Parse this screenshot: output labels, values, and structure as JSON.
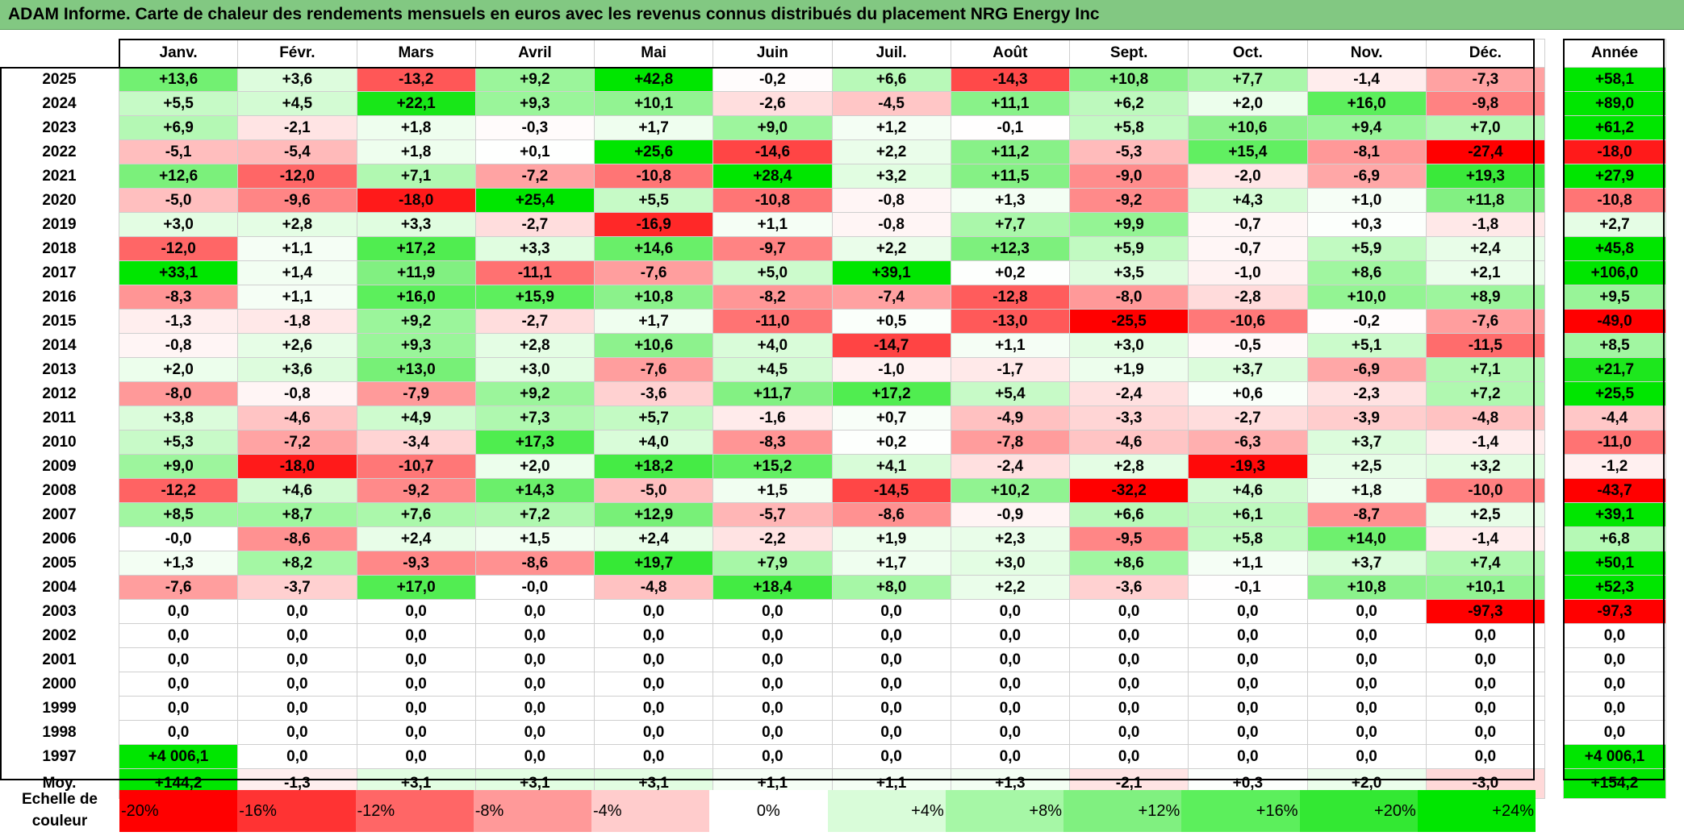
{
  "title": "ADAM Informe. Carte de chaleur des rendements mensuels en euros avec les revenus connus distribués du placement NRG Energy Inc",
  "chart_data": {
    "type": "heatmap",
    "title": "ADAM Informe. Carte de chaleur des rendements mensuels en euros avec les revenus connus distribués du placement NRG Energy Inc",
    "columns": [
      "Janv.",
      "Févr.",
      "Mars",
      "Avril",
      "Mai",
      "Juin",
      "Juil.",
      "Août",
      "Sept.",
      "Oct.",
      "Nov.",
      "Déc."
    ],
    "year_column_label": "Année",
    "rows": [
      {
        "year": "2025",
        "values": [
          "+13,6",
          "+3,6",
          "-13,2",
          "+9,2",
          "+42,8",
          "-0,2",
          "+6,6",
          "-14,3",
          "+10,8",
          "+7,7",
          "-1,4",
          "-7,3"
        ],
        "annual": "+58,1"
      },
      {
        "year": "2024",
        "values": [
          "+5,5",
          "+4,5",
          "+22,1",
          "+9,3",
          "+10,1",
          "-2,6",
          "-4,5",
          "+11,1",
          "+6,2",
          "+2,0",
          "+16,0",
          "-9,8"
        ],
        "annual": "+89,0"
      },
      {
        "year": "2023",
        "values": [
          "+6,9",
          "-2,1",
          "+1,8",
          "-0,3",
          "+1,7",
          "+9,0",
          "+1,2",
          "-0,1",
          "+5,8",
          "+10,6",
          "+9,4",
          "+7,0"
        ],
        "annual": "+61,2"
      },
      {
        "year": "2022",
        "values": [
          "-5,1",
          "-5,4",
          "+1,8",
          "+0,1",
          "+25,6",
          "-14,6",
          "+2,2",
          "+11,2",
          "-5,3",
          "+15,4",
          "-8,1",
          "-27,4"
        ],
        "annual": "-18,0"
      },
      {
        "year": "2021",
        "values": [
          "+12,6",
          "-12,0",
          "+7,1",
          "-7,2",
          "-10,8",
          "+28,4",
          "+3,2",
          "+11,5",
          "-9,0",
          "-2,0",
          "-6,9",
          "+19,3"
        ],
        "annual": "+27,9"
      },
      {
        "year": "2020",
        "values": [
          "-5,0",
          "-9,6",
          "-18,0",
          "+25,4",
          "+5,5",
          "-10,8",
          "-0,8",
          "+1,3",
          "-9,2",
          "+4,3",
          "+1,0",
          "+11,8"
        ],
        "annual": "-10,8"
      },
      {
        "year": "2019",
        "values": [
          "+3,0",
          "+2,8",
          "+3,3",
          "-2,7",
          "-16,9",
          "+1,1",
          "-0,8",
          "+7,7",
          "+9,9",
          "-0,7",
          "+0,3",
          "-1,8"
        ],
        "annual": "+2,7"
      },
      {
        "year": "2018",
        "values": [
          "-12,0",
          "+1,1",
          "+17,2",
          "+3,3",
          "+14,6",
          "-9,7",
          "+2,2",
          "+12,3",
          "+5,9",
          "-0,7",
          "+5,9",
          "+2,4"
        ],
        "annual": "+45,8"
      },
      {
        "year": "2017",
        "values": [
          "+33,1",
          "+1,4",
          "+11,9",
          "-11,1",
          "-7,6",
          "+5,0",
          "+39,1",
          "+0,2",
          "+3,5",
          "-1,0",
          "+8,6",
          "+2,1"
        ],
        "annual": "+106,0"
      },
      {
        "year": "2016",
        "values": [
          "-8,3",
          "+1,1",
          "+16,0",
          "+15,9",
          "+10,8",
          "-8,2",
          "-7,4",
          "-12,8",
          "-8,0",
          "-2,8",
          "+10,0",
          "+8,9"
        ],
        "annual": "+9,5"
      },
      {
        "year": "2015",
        "values": [
          "-1,3",
          "-1,8",
          "+9,2",
          "-2,7",
          "+1,7",
          "-11,0",
          "+0,5",
          "-13,0",
          "-25,5",
          "-10,6",
          "-0,2",
          "-7,6"
        ],
        "annual": "-49,0"
      },
      {
        "year": "2014",
        "values": [
          "-0,8",
          "+2,6",
          "+9,3",
          "+2,8",
          "+10,6",
          "+4,0",
          "-14,7",
          "+1,1",
          "+3,0",
          "-0,5",
          "+5,1",
          "-11,5"
        ],
        "annual": "+8,5"
      },
      {
        "year": "2013",
        "values": [
          "+2,0",
          "+3,6",
          "+13,0",
          "+3,0",
          "-7,6",
          "+4,5",
          "-1,0",
          "-1,7",
          "+1,9",
          "+3,7",
          "-6,9",
          "+7,1"
        ],
        "annual": "+21,7"
      },
      {
        "year": "2012",
        "values": [
          "-8,0",
          "-0,8",
          "-7,9",
          "+9,2",
          "-3,6",
          "+11,7",
          "+17,2",
          "+5,4",
          "-2,4",
          "+0,6",
          "-2,3",
          "+7,2"
        ],
        "annual": "+25,5"
      },
      {
        "year": "2011",
        "values": [
          "+3,8",
          "-4,6",
          "+4,9",
          "+7,3",
          "+5,7",
          "-1,6",
          "+0,7",
          "-4,9",
          "-3,3",
          "-2,7",
          "-3,9",
          "-4,8"
        ],
        "annual": "-4,4"
      },
      {
        "year": "2010",
        "values": [
          "+5,3",
          "-7,2",
          "-3,4",
          "+17,3",
          "+4,0",
          "-8,3",
          "+0,2",
          "-7,8",
          "-4,6",
          "-6,3",
          "+3,7",
          "-1,4"
        ],
        "annual": "-11,0"
      },
      {
        "year": "2009",
        "values": [
          "+9,0",
          "-18,0",
          "-10,7",
          "+2,0",
          "+18,2",
          "+15,2",
          "+4,1",
          "-2,4",
          "+2,8",
          "-19,3",
          "+2,5",
          "+3,2"
        ],
        "annual": "-1,2"
      },
      {
        "year": "2008",
        "values": [
          "-12,2",
          "+4,6",
          "-9,2",
          "+14,3",
          "-5,0",
          "+1,5",
          "-14,5",
          "+10,2",
          "-32,2",
          "+4,6",
          "+1,8",
          "-10,0"
        ],
        "annual": "-43,7"
      },
      {
        "year": "2007",
        "values": [
          "+8,5",
          "+8,7",
          "+7,6",
          "+7,2",
          "+12,9",
          "-5,7",
          "-8,6",
          "-0,9",
          "+6,6",
          "+6,1",
          "-8,7",
          "+2,5"
        ],
        "annual": "+39,1"
      },
      {
        "year": "2006",
        "values": [
          "-0,0",
          "-8,6",
          "+2,4",
          "+1,5",
          "+2,4",
          "-2,2",
          "+1,9",
          "+2,3",
          "-9,5",
          "+5,8",
          "+14,0",
          "-1,4"
        ],
        "annual": "+6,8"
      },
      {
        "year": "2005",
        "values": [
          "+1,3",
          "+8,2",
          "-9,3",
          "-8,6",
          "+19,7",
          "+7,9",
          "+1,7",
          "+3,0",
          "+8,6",
          "+1,1",
          "+3,7",
          "+7,4"
        ],
        "annual": "+50,1"
      },
      {
        "year": "2004",
        "values": [
          "-7,6",
          "-3,7",
          "+17,0",
          "-0,0",
          "-4,8",
          "+18,4",
          "+8,0",
          "+2,2",
          "-3,6",
          "-0,1",
          "+10,8",
          "+10,1"
        ],
        "annual": "+52,3"
      },
      {
        "year": "2003",
        "values": [
          "0,0",
          "0,0",
          "0,0",
          "0,0",
          "0,0",
          "0,0",
          "0,0",
          "0,0",
          "0,0",
          "0,0",
          "0,0",
          "-97,3"
        ],
        "annual": "-97,3"
      },
      {
        "year": "2002",
        "values": [
          "0,0",
          "0,0",
          "0,0",
          "0,0",
          "0,0",
          "0,0",
          "0,0",
          "0,0",
          "0,0",
          "0,0",
          "0,0",
          "0,0"
        ],
        "annual": "0,0"
      },
      {
        "year": "2001",
        "values": [
          "0,0",
          "0,0",
          "0,0",
          "0,0",
          "0,0",
          "0,0",
          "0,0",
          "0,0",
          "0,0",
          "0,0",
          "0,0",
          "0,0"
        ],
        "annual": "0,0"
      },
      {
        "year": "2000",
        "values": [
          "0,0",
          "0,0",
          "0,0",
          "0,0",
          "0,0",
          "0,0",
          "0,0",
          "0,0",
          "0,0",
          "0,0",
          "0,0",
          "0,0"
        ],
        "annual": "0,0"
      },
      {
        "year": "1999",
        "values": [
          "0,0",
          "0,0",
          "0,0",
          "0,0",
          "0,0",
          "0,0",
          "0,0",
          "0,0",
          "0,0",
          "0,0",
          "0,0",
          "0,0"
        ],
        "annual": "0,0"
      },
      {
        "year": "1998",
        "values": [
          "0,0",
          "0,0",
          "0,0",
          "0,0",
          "0,0",
          "0,0",
          "0,0",
          "0,0",
          "0,0",
          "0,0",
          "0,0",
          "0,0"
        ],
        "annual": "0,0"
      },
      {
        "year": "1997",
        "values": [
          "+4 006,1",
          "0,0",
          "0,0",
          "0,0",
          "0,0",
          "0,0",
          "0,0",
          "0,0",
          "0,0",
          "0,0",
          "0,0",
          "0,0"
        ],
        "annual": "+4 006,1"
      }
    ],
    "average": {
      "label": "Moy.",
      "values": [
        "+144,2",
        "-1,3",
        "+3,1",
        "+3,1",
        "+3,1",
        "+1,1",
        "+1,1",
        "+1,3",
        "-2,1",
        "+0,3",
        "+2,0",
        "-3,0"
      ],
      "annual": "+154,2"
    },
    "color_scale": {
      "label": "Echelle de couleur",
      "stops": [
        {
          "label": "-20%",
          "value": -20,
          "color": "#ff0000"
        },
        {
          "label": "-16%",
          "value": -16,
          "color": "#ff3333"
        },
        {
          "label": "-12%",
          "value": -12,
          "color": "#ff6666"
        },
        {
          "label": "-8%",
          "value": -8,
          "color": "#ff9999"
        },
        {
          "label": "-4%",
          "value": -4,
          "color": "#ffcccc"
        },
        {
          "label": "0%",
          "value": 0,
          "color": "#ffffff"
        },
        {
          "label": "+4%",
          "value": 4,
          "color": "#d9fcd9"
        },
        {
          "label": "+8%",
          "value": 8,
          "color": "#a6f7a6"
        },
        {
          "label": "+12%",
          "value": 12,
          "color": "#80f080"
        },
        {
          "label": "+16%",
          "value": 16,
          "color": "#5cef5c"
        },
        {
          "label": "+20%",
          "value": 20,
          "color": "#33e833"
        },
        {
          "label": "+24%",
          "value": 24,
          "color": "#00e600"
        }
      ]
    }
  }
}
